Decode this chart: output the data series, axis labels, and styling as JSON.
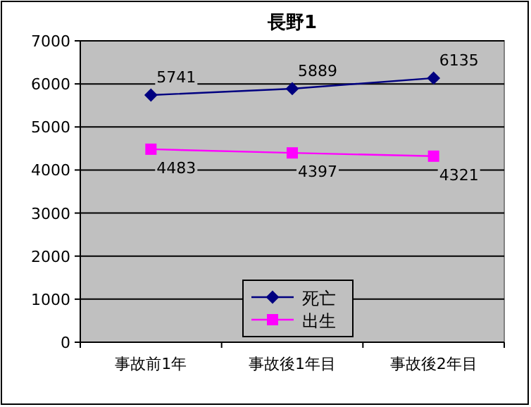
{
  "chart_data": {
    "type": "line",
    "title": "長野1",
    "categories": [
      "事故前1年",
      "事故後1年目",
      "事故後2年目"
    ],
    "series": [
      {
        "name": "死亡",
        "color": "#000080",
        "marker": "diamond",
        "values": [
          5741,
          5889,
          6135
        ]
      },
      {
        "name": "出生",
        "color": "#ff00ff",
        "marker": "square",
        "values": [
          4483,
          4397,
          4321
        ]
      }
    ],
    "ylim": [
      0,
      7000
    ],
    "yticks": [
      0,
      1000,
      2000,
      3000,
      4000,
      5000,
      6000,
      7000
    ],
    "grid": "y",
    "legend": "bottom",
    "data_labels": true
  }
}
